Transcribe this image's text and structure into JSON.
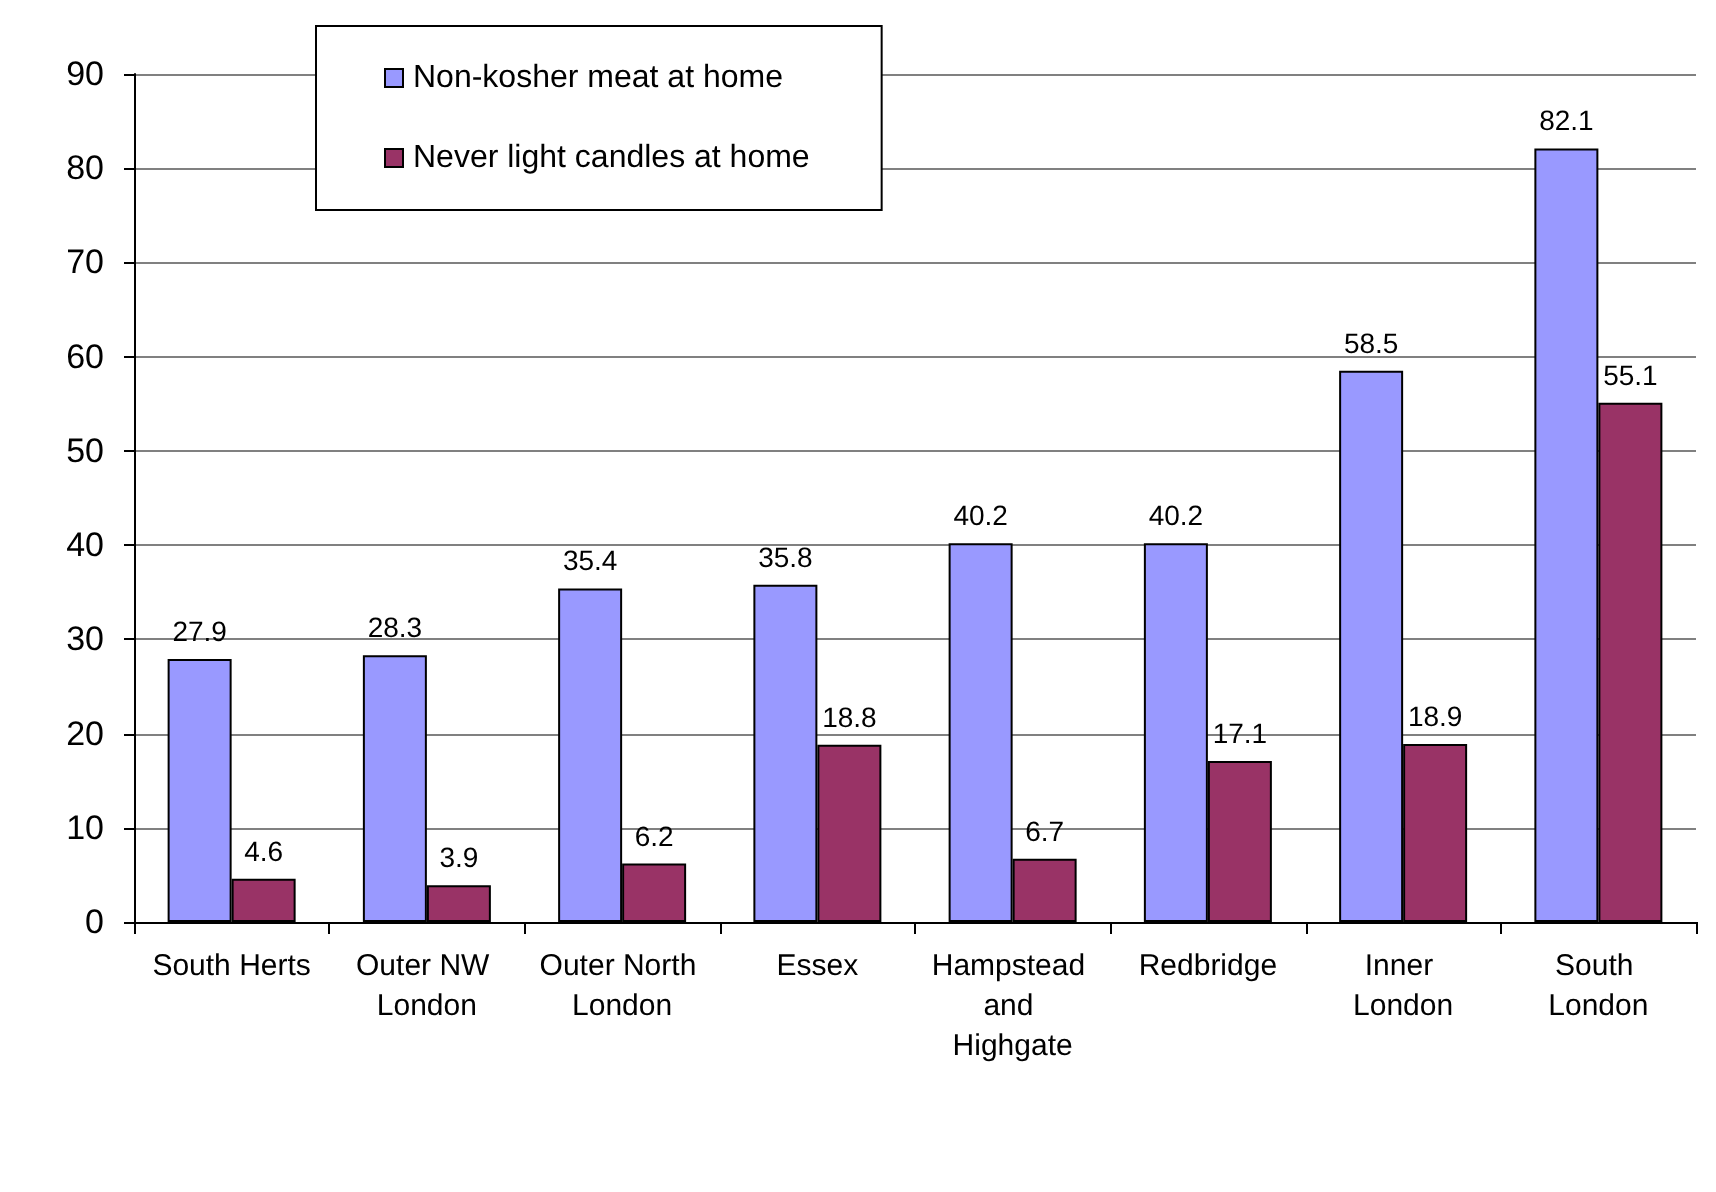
{
  "chart_data": {
    "type": "bar",
    "categories": [
      "South Herts",
      "Outer NW London",
      "Outer North London",
      "Essex",
      "Hampstead and Highgate",
      "Redbridge",
      "Inner London",
      "South London"
    ],
    "series": [
      {
        "name": "Non-kosher meat at home",
        "color": "#9999ff",
        "values": [
          27.9,
          28.3,
          35.4,
          35.8,
          40.2,
          40.2,
          58.5,
          82.1
        ]
      },
      {
        "name": "Never light candles at home",
        "color": "#993366",
        "values": [
          4.6,
          3.9,
          6.2,
          18.8,
          6.7,
          17.1,
          18.9,
          55.1
        ]
      }
    ],
    "ylim": [
      0,
      90
    ],
    "yticks": [
      0,
      10,
      20,
      30,
      40,
      50,
      60,
      70,
      80,
      90
    ],
    "grid": "y",
    "legend": "top left",
    "data_labels": true
  }
}
